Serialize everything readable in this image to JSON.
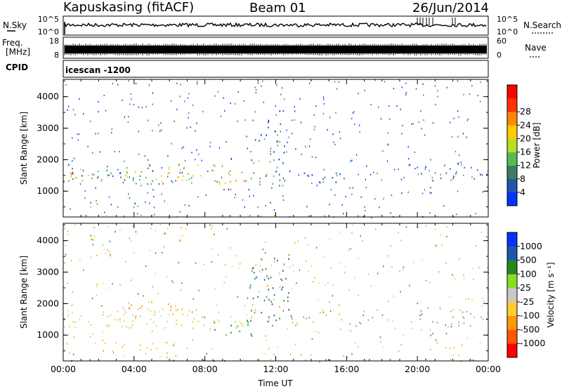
{
  "header": {
    "site": "Kapuskasing (fitACF)",
    "beam": "Beam 01",
    "date": "26/Jun/2014"
  },
  "noise_panel": {
    "left_label": "N.Sky",
    "left_ticks": [
      "10^5",
      "10^0"
    ],
    "right_label": "N.Search",
    "right_ticks": [
      "10^5",
      "10^0"
    ]
  },
  "freq_panel": {
    "left_label_1": "Freq.",
    "left_label_2": "[MHz]",
    "left_ticks": [
      "18",
      "8"
    ],
    "right_label": "Nave",
    "right_ticks": [
      "60",
      "0"
    ]
  },
  "cpid_panel": {
    "label": "CPID",
    "value": "icescan -1200"
  },
  "colors": {
    "power": [
      "#0033ff",
      "#2255aa",
      "#3a7d60",
      "#55bb55",
      "#bbdd22",
      "#ffcc00",
      "#ff8800",
      "#ff3300",
      "#ff0000"
    ],
    "velocity": [
      "#ff0000",
      "#ff5500",
      "#ff9900",
      "#ffcc33",
      "#c8c8c8",
      "#88dd22",
      "#228822",
      "#2255aa",
      "#0033ff"
    ],
    "ground": "#9e9e9e"
  },
  "chart_data": [
    {
      "type": "heatmap",
      "name": "power",
      "ylabel": "Slant Range [km]",
      "xlim": [
        0,
        24
      ],
      "ylim": [
        180,
        4550
      ],
      "yticks": [
        "1000",
        "2000",
        "3000",
        "4000"
      ],
      "colorbar": {
        "label": "Power [dB]",
        "range": [
          0,
          32
        ],
        "ticks": [
          "4",
          "8",
          "12",
          "16",
          "20",
          "24",
          "28"
        ]
      },
      "bands": [
        {
          "t": [
            0,
            8.8
          ],
          "r": [
            1250,
            1900
          ],
          "v": 12
        },
        {
          "t": [
            0,
            10.5
          ],
          "r": [
            1350,
            1650
          ],
          "v": 18
        },
        {
          "t": [
            8.5,
            10.8
          ],
          "r": [
            1050,
            1500
          ],
          "v": 20
        },
        {
          "t": [
            10.5,
            12.8
          ],
          "r": [
            1200,
            2900
          ],
          "v": 8
        },
        {
          "t": [
            11.5,
            12.5
          ],
          "r": [
            2900,
            3700
          ],
          "v": 6
        },
        {
          "t": [
            12.8,
            18
          ],
          "r": [
            1300,
            1600
          ],
          "v": 6
        },
        {
          "t": [
            20,
            24
          ],
          "r": [
            1300,
            1900
          ],
          "v": 7
        },
        {
          "t": [
            1.5,
            4.5
          ],
          "r": [
            500,
            700
          ],
          "v": 10
        },
        {
          "t": [
            0,
            24
          ],
          "r": [
            200,
            260
          ],
          "v": 22
        }
      ]
    },
    {
      "type": "heatmap",
      "name": "velocity",
      "ylabel": "Slant Range [km]",
      "xlabel": "Time UT",
      "xlim": [
        0,
        24
      ],
      "ylim": [
        180,
        4550
      ],
      "xticks": [
        "00:00",
        "04:00",
        "08:00",
        "12:00",
        "16:00",
        "20:00",
        "00:00"
      ],
      "yticks": [
        "1000",
        "2000",
        "3000",
        "4000"
      ],
      "colorbar": {
        "label": "Velocity [m s⁻¹]",
        "ticks": [
          "1000",
          "500",
          "100",
          "25",
          "-25",
          "-100",
          "-500",
          "-1000"
        ]
      },
      "bands": [
        {
          "t": [
            0,
            8.8
          ],
          "r": [
            1250,
            1900
          ],
          "v": -25
        },
        {
          "t": [
            3.5,
            7.5
          ],
          "r": [
            1600,
            2100
          ],
          "v": -100
        },
        {
          "t": [
            8.5,
            10.8
          ],
          "r": [
            1000,
            1500
          ],
          "v": 300
        },
        {
          "t": [
            10.5,
            12.8
          ],
          "r": [
            1400,
            3500
          ],
          "v": 500
        },
        {
          "t": [
            11.8,
            12.3
          ],
          "r": [
            1900,
            2100
          ],
          "v": -500
        },
        {
          "t": [
            12.8,
            18
          ],
          "r": [
            1300,
            1600
          ],
          "v": 0
        },
        {
          "t": [
            20,
            24
          ],
          "r": [
            1300,
            1900
          ],
          "v": 0
        },
        {
          "t": [
            1.5,
            6
          ],
          "r": [
            500,
            800
          ],
          "v": -80
        },
        {
          "t": [
            0,
            24
          ],
          "r": [
            200,
            260
          ],
          "v": 200
        }
      ]
    }
  ]
}
